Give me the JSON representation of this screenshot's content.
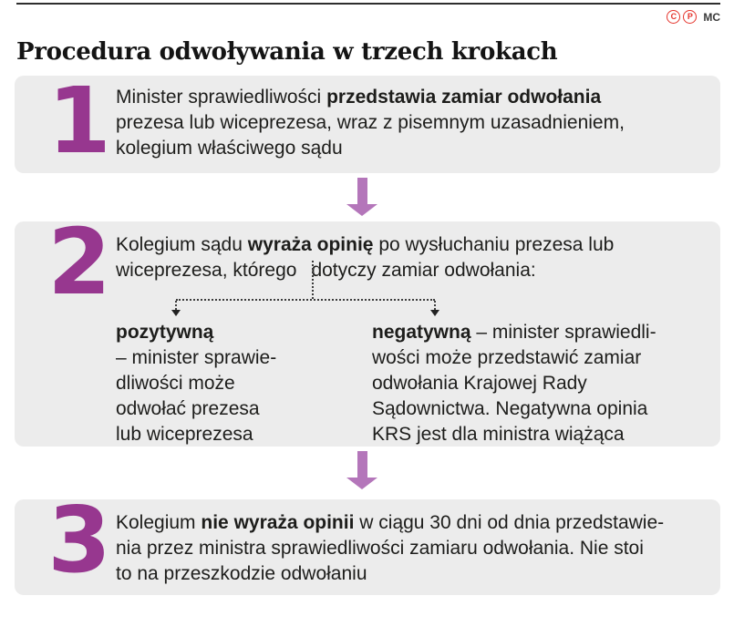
{
  "meta": {
    "accent_purple": "#97378f",
    "arrow_purple": "#b476ba",
    "block_bg": "#ececec",
    "copyright_red": "#e5332b"
  },
  "header": {
    "title": "Procedura odwoływania w trzech krokach",
    "copyright_c": "C",
    "copyright_p": "P",
    "credit": "MC"
  },
  "steps": {
    "step1": {
      "number": "1",
      "line1_normal": "Minister sprawiedliwości ",
      "line1_bold": "przedstawia zamiar odwołania",
      "line2": "prezesa lub wiceprezesa, wraz z pisemnym uzasadnieniem,",
      "line3": "kolegium właściwego sądu"
    },
    "step2": {
      "number": "2",
      "line1_pre": "Kolegium sądu ",
      "line1_bold": "wyraża opinię",
      "line1_post": " po wysłuchaniu prezesa lub",
      "line2_a": "wiceprezesa, którego",
      "line2_b": "dotyczy zamiar odwołania:",
      "positive": {
        "head": "pozytywną",
        "line1": "– minister sprawie-",
        "line2": "dliwości może",
        "line3": "odwołać prezesa",
        "line4": "lub wiceprezesa"
      },
      "negative": {
        "head": "negatywną",
        "head_rest": " – minister sprawiedli-",
        "line2": "wości może przedstawić zamiar",
        "line3": "odwołania Krajowej Rady",
        "line4": "Sądownictwa. Negatywna opinia",
        "line5": "KRS jest dla ministra wiążąca"
      }
    },
    "step3": {
      "number": "3",
      "line1_normal": "Kolegium ",
      "line1_bold": "nie wyraża opinii",
      "line1_rest": " w ciągu 30 dni od dnia przedstawie-",
      "line2": "nia przez ministra sprawiedliwości zamiaru odwołania. Nie stoi",
      "line3": "to na przeszkodzie odwołaniu"
    }
  }
}
